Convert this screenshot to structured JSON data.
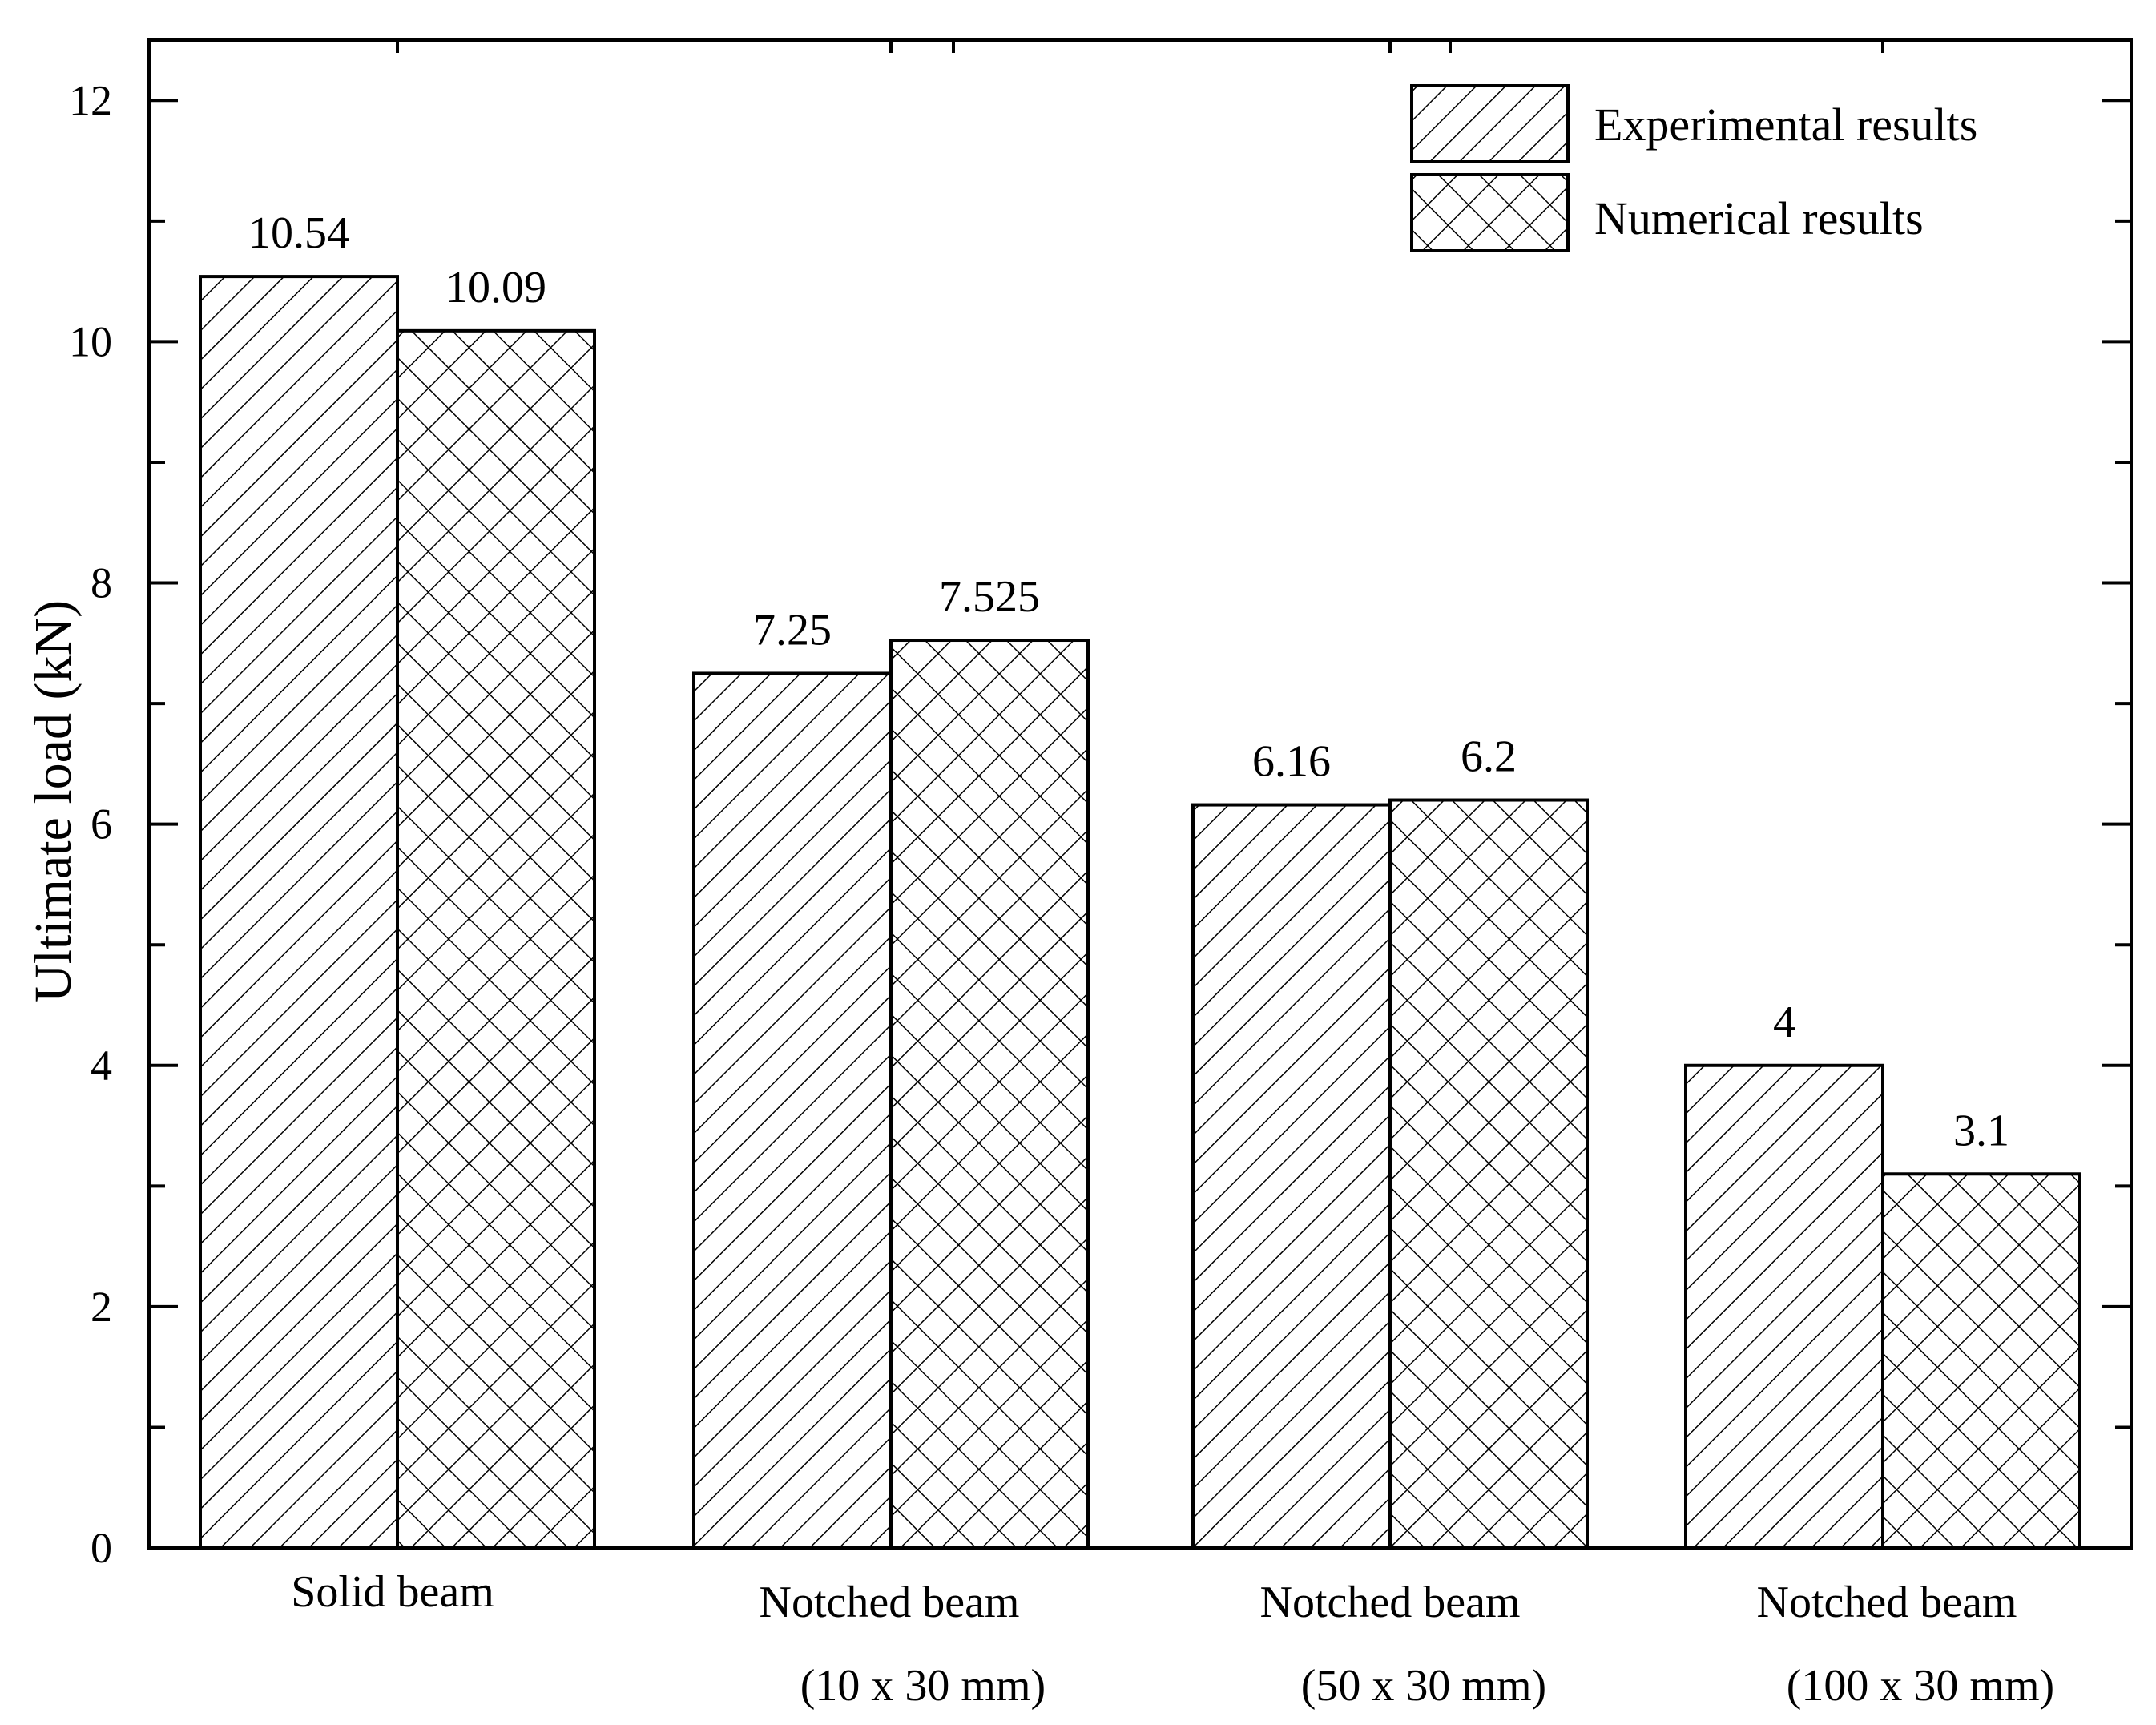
{
  "chart_data": {
    "type": "bar",
    "categories": [
      {
        "line1": "Solid beam",
        "line2": ""
      },
      {
        "line1": "Notched beam",
        "line2": "(10 x 30 mm)"
      },
      {
        "line1": "Notched beam",
        "line2": "(50 x 30 mm)"
      },
      {
        "line1": "Notched beam",
        "line2": "(100 x 30 mm)"
      }
    ],
    "series": [
      {
        "name": "Experimental results",
        "pattern": "diagonal-hatch",
        "values": [
          10.54,
          7.25,
          6.16,
          4
        ],
        "labels": [
          "10.54",
          "7.25",
          "6.16",
          "4"
        ]
      },
      {
        "name": "Numerical results",
        "pattern": "cross-hatch",
        "values": [
          10.09,
          7.525,
          6.2,
          3.1
        ],
        "labels": [
          "10.09",
          "7.525",
          "6.2",
          "3.1"
        ]
      }
    ],
    "title": "",
    "xlabel": "",
    "ylabel": "Ultimate load (kN)",
    "ylim": [
      0,
      12.5
    ],
    "yticks": [
      0,
      2,
      4,
      6,
      8,
      10,
      12
    ],
    "grid": false,
    "legend_position": "top-right",
    "colors": {
      "stroke": "#000000",
      "fill": "#ffffff"
    }
  }
}
